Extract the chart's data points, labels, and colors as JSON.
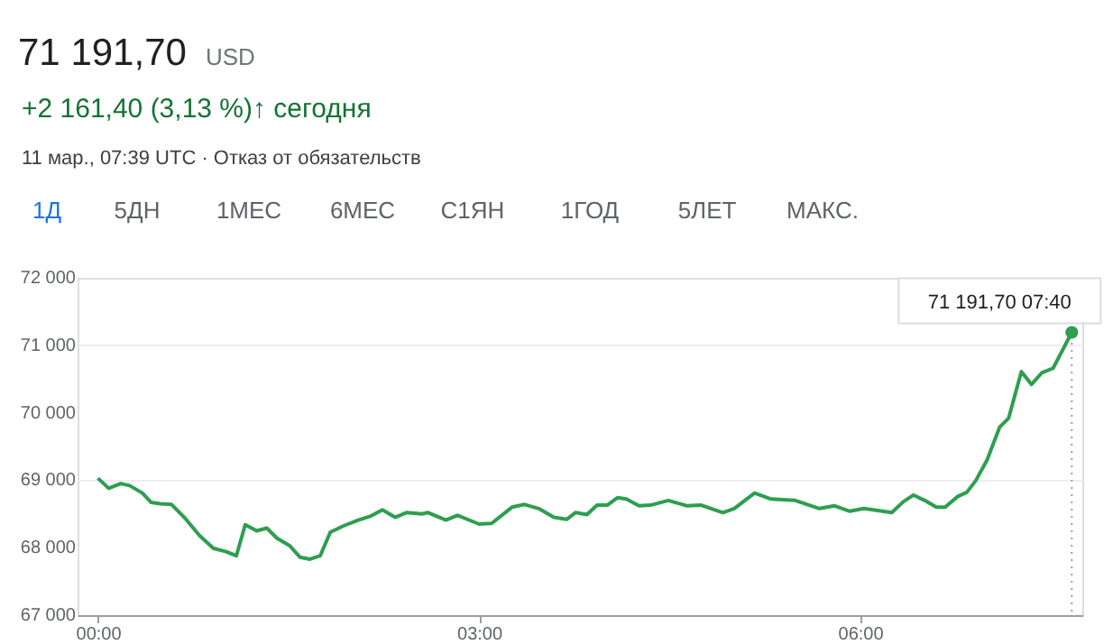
{
  "chart_data": {
    "type": "line",
    "title": "71 191,70",
    "subtitle": "+2 161,40 (3,13 %)↑ сегодня",
    "annotations": [
      "USD",
      "11 мар., 07:39 UTC · Отказ от обязательств",
      "1Д",
      "5ДН",
      "1МЕС",
      "6МЕС",
      "С1ЯН",
      "1ГОД",
      "5ЛЕТ",
      "МАКС.",
      {
        "text": "71 191,70 07:40",
        "x": 7.667,
        "y": 71191.7
      }
    ],
    "x": [
      0,
      0.085,
      0.18,
      0.25,
      0.35,
      0.42,
      0.49,
      0.58,
      0.68,
      0.8,
      0.91,
      1.01,
      1.09,
      1.16,
      1.25,
      1.33,
      1.41,
      1.51,
      1.59,
      1.67,
      1.75,
      1.83,
      1.93,
      2.05,
      2.15,
      2.24,
      2.34,
      2.43,
      2.55,
      2.6,
      2.74,
      2.83,
      3.0,
      3.1,
      3.26,
      3.36,
      3.47,
      3.59,
      3.69,
      3.76,
      3.85,
      3.93,
      4.01,
      4.09,
      4.16,
      4.26,
      4.35,
      4.49,
      4.64,
      4.75,
      4.92,
      5.01,
      5.17,
      5.3,
      5.49,
      5.68,
      5.8,
      5.92,
      6.03,
      6.25,
      6.34,
      6.42,
      6.51,
      6.6,
      6.67,
      6.77,
      6.84,
      6.91,
      7.0,
      7.1,
      7.17,
      7.27,
      7.35,
      7.43,
      7.52,
      7.667
    ],
    "series": [
      {
        "color": "#2e9e4f",
        "values": [
          69030,
          68880,
          68950,
          68920,
          68810,
          68670,
          68650,
          68640,
          68450,
          68180,
          67990,
          67940,
          67880,
          68340,
          68250,
          68290,
          68140,
          68030,
          67860,
          67830,
          67880,
          68230,
          68320,
          68410,
          68470,
          68560,
          68450,
          68520,
          68500,
          68520,
          68410,
          68480,
          68350,
          68360,
          68600,
          68640,
          68580,
          68450,
          68420,
          68520,
          68490,
          68630,
          68630,
          68740,
          68720,
          68620,
          68630,
          68700,
          68620,
          68630,
          68520,
          68580,
          68810,
          68720,
          68700,
          68580,
          68620,
          68540,
          68580,
          68520,
          68680,
          68780,
          68700,
          68600,
          68600,
          68760,
          68820,
          68990,
          69300,
          69790,
          69920,
          70610,
          70420,
          70590,
          70660,
          71191.7
        ]
      }
    ],
    "xlim": [
      -0.16,
      7.75
    ],
    "xticks": [
      {
        "value": 0,
        "label": "00:00"
      },
      {
        "value": 3,
        "label": "03:00"
      },
      {
        "value": 6,
        "label": "06:00"
      }
    ],
    "ylim": [
      67000,
      72000
    ],
    "yticks": [
      {
        "value": 67000,
        "label": "67 000"
      },
      {
        "value": 68000,
        "label": "68 000"
      },
      {
        "value": 69000,
        "label": "69 000"
      },
      {
        "value": 70000,
        "label": "70 000"
      },
      {
        "value": 71000,
        "label": "71 000"
      },
      {
        "value": 72000,
        "label": "72 000"
      }
    ],
    "ref_lines": [
      {
        "axis": "x",
        "value": 7.667,
        "color": "#9e9e9e",
        "line_style": "dotted"
      }
    ],
    "grid": "y",
    "marker": "none",
    "line_style": "solid"
  }
}
